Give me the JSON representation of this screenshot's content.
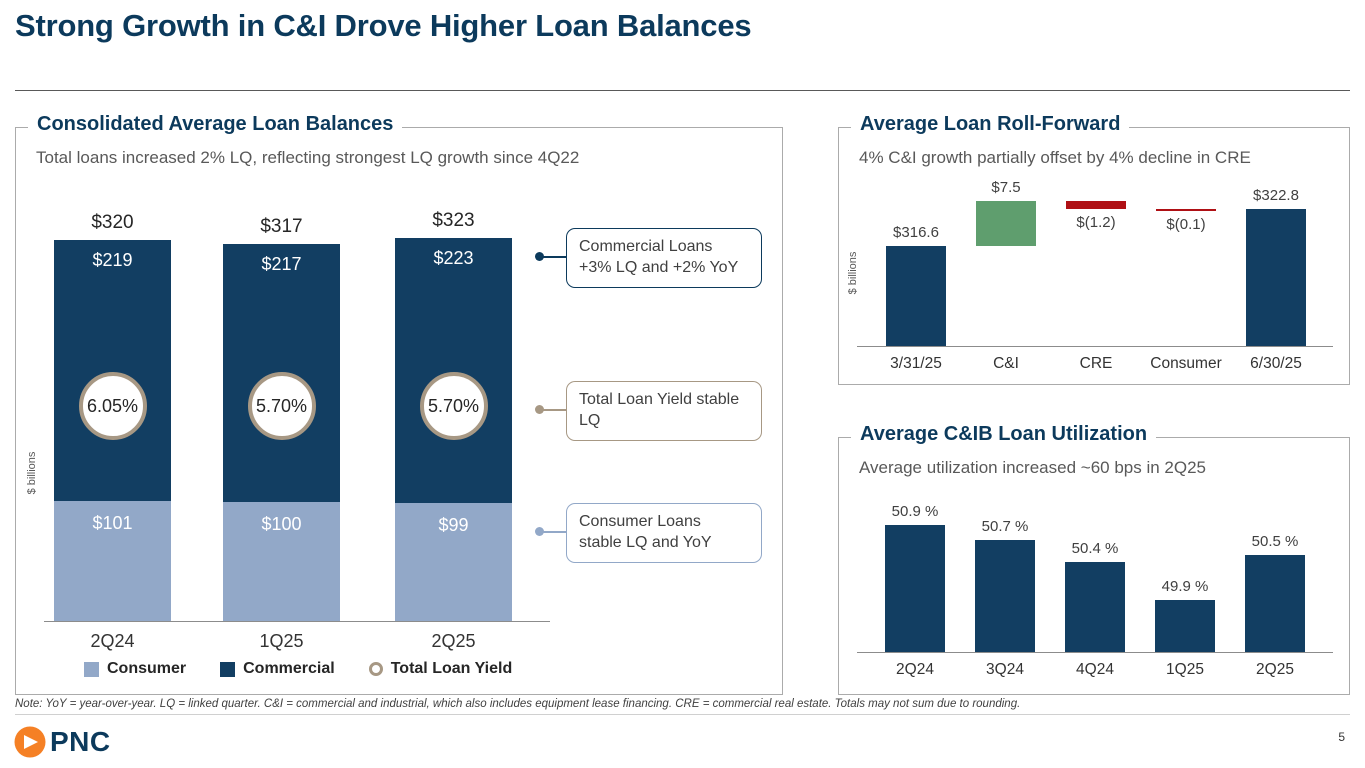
{
  "slide": {
    "title": "Strong Growth in C&I Drove Higher Loan Balances",
    "footnote": "Note: YoY = year-over-year. LQ = linked quarter. C&I = commercial and industrial, which also includes equipment lease financing. CRE = commercial real estate. Totals may not sum due to rounding.",
    "page_number": "5",
    "logo_text": "PNC"
  },
  "colors": {
    "navy": "#0C3A5C",
    "commercial": "#123E62",
    "consumer": "#92A8C8",
    "increase": "#5F9E6E",
    "decrease": "#AF1015",
    "yield_ring": "#A79884",
    "axis_gray": "#8C8C8C",
    "pnc_orange": "#F58025"
  },
  "balances_panel": {
    "title": "Consolidated Average Loan Balances",
    "subtitle": "Total loans increased 2% LQ, reflecting strongest LQ growth since 4Q22",
    "y_axis_label": "$ billions",
    "legend": [
      {
        "label": "Consumer",
        "swatch": "consumer"
      },
      {
        "label": "Commercial",
        "swatch": "commercial"
      },
      {
        "label": "Total Loan Yield",
        "swatch": "yield"
      }
    ],
    "callouts": [
      {
        "text": "Commercial Loans\n+3% LQ and +2% YoY",
        "color": "#0C3A5C"
      },
      {
        "text": "Total Loan Yield stable\nLQ",
        "color": "#A79884"
      },
      {
        "text": "Consumer Loans\nstable LQ and YoY",
        "color": "#92A8C8"
      }
    ]
  },
  "rollforward_panel": {
    "title": "Average Loan Roll-Forward",
    "subtitle": "4% C&I growth partially offset by 4% decline in CRE",
    "y_axis_label": "$ billions"
  },
  "utilization_panel": {
    "title": "Average C&IB Loan Utilization",
    "subtitle": "Average utilization increased ~60 bps in 2Q25"
  },
  "chart_data": [
    {
      "type": "bar",
      "stacked": true,
      "title": "Consolidated Average Loan Balances",
      "ylabel": "$ billions",
      "categories": [
        "2Q24",
        "1Q25",
        "2Q25"
      ],
      "series": [
        {
          "name": "Consumer",
          "values": [
            101,
            100,
            99
          ],
          "labels": [
            "$101",
            "$100",
            "$99"
          ]
        },
        {
          "name": "Commercial",
          "values": [
            219,
            217,
            223
          ],
          "labels": [
            "$219",
            "$217",
            "$223"
          ]
        }
      ],
      "totals": [
        320,
        317,
        323
      ],
      "total_labels": [
        "$320",
        "$317",
        "$323"
      ],
      "yield_series_name": "Total Loan Yield",
      "yield_labels": [
        "6.05%",
        "5.70%",
        "5.70%"
      ],
      "ylim": [
        0,
        350
      ]
    },
    {
      "type": "waterfall",
      "title": "Average Loan Roll-Forward",
      "ylabel": "$ billions",
      "categories": [
        "3/31/25",
        "C&I",
        "CRE",
        "Consumer",
        "6/30/25"
      ],
      "values": [
        316.6,
        7.5,
        -1.2,
        -0.1,
        322.8
      ],
      "labels": [
        "$316.6",
        "$7.5",
        "$(1.2)",
        "$(0.1)",
        "$322.8"
      ],
      "roles": [
        "total",
        "increase",
        "decrease",
        "decrease",
        "total"
      ],
      "axis_truncated": true,
      "axis_min_value": 300
    },
    {
      "type": "bar",
      "title": "Average C&IB Loan Utilization",
      "categories": [
        "2Q24",
        "3Q24",
        "4Q24",
        "1Q25",
        "2Q25"
      ],
      "values": [
        50.9,
        50.7,
        50.4,
        49.9,
        50.5
      ],
      "labels": [
        "50.9 %",
        "50.7 %",
        "50.4 %",
        "49.9 %",
        "50.5 %"
      ],
      "axis_truncated": true,
      "axis_min_value": 49.2
    }
  ]
}
